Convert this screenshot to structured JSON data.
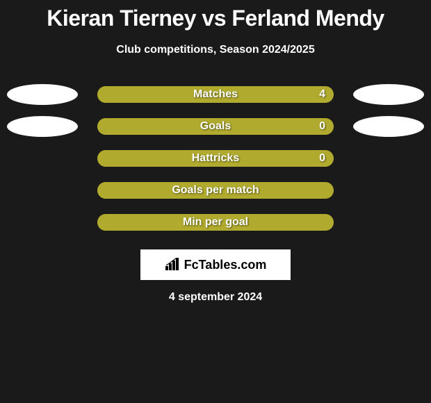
{
  "background_color": "#1a1a1a",
  "title": "Kieran Tierney vs Ferland Mendy",
  "title_fontsize": 32,
  "subtitle": "Club competitions, Season 2024/2025",
  "subtitle_fontsize": 16,
  "date": "4 september 2024",
  "logo_text": "FcTables.com",
  "bar_track_color": "#a9a42c",
  "bar_fill_color": "#b0aa2e",
  "ellipse_color": "#ffffff",
  "text_color": "#ffffff",
  "stats": [
    {
      "label": "Matches",
      "value": "4",
      "fill_pct": 100,
      "show_left_ellipse": true,
      "show_right_ellipse": true
    },
    {
      "label": "Goals",
      "value": "0",
      "fill_pct": 100,
      "show_left_ellipse": true,
      "show_right_ellipse": true
    },
    {
      "label": "Hattricks",
      "value": "0",
      "fill_pct": 100,
      "show_left_ellipse": false,
      "show_right_ellipse": false
    },
    {
      "label": "Goals per match",
      "value": "",
      "fill_pct": 100,
      "show_left_ellipse": false,
      "show_right_ellipse": false
    },
    {
      "label": "Min per goal",
      "value": "",
      "fill_pct": 100,
      "show_left_ellipse": false,
      "show_right_ellipse": false
    }
  ]
}
